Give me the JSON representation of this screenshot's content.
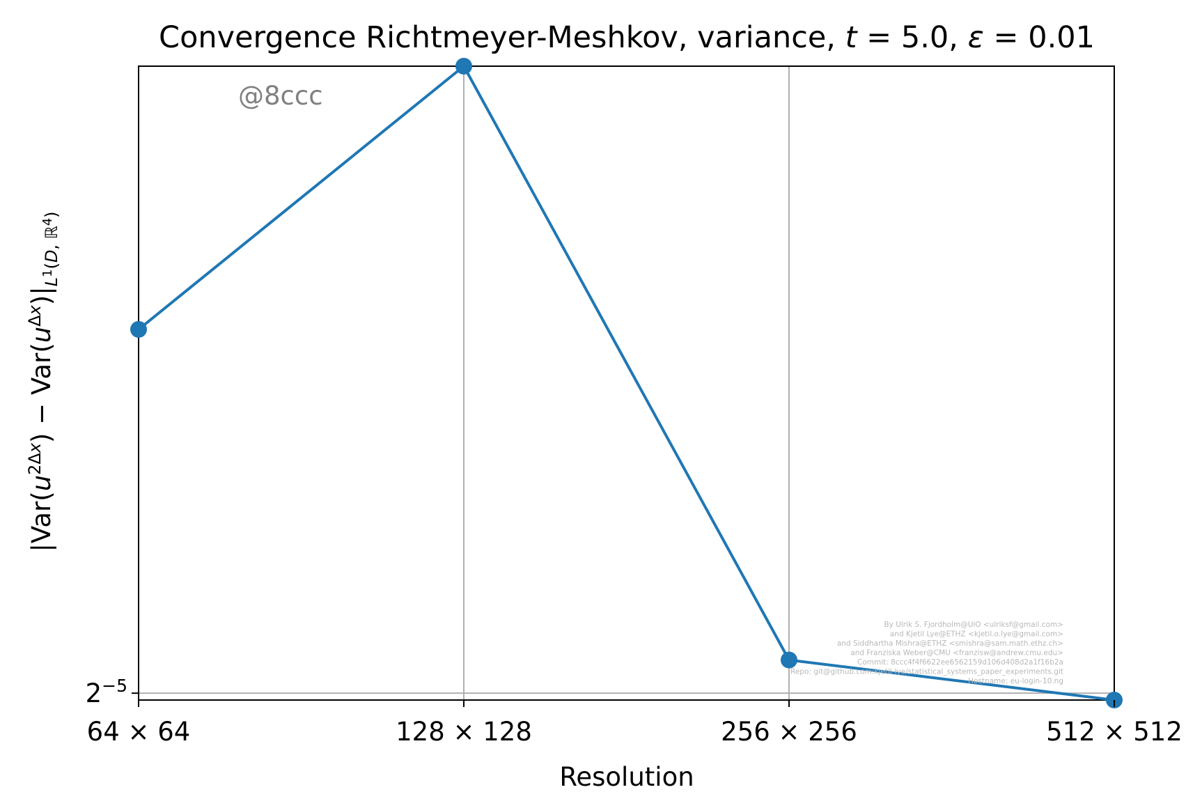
{
  "chart_data": {
    "type": "line",
    "title": "Convergence Richtmeyer-Meshkov, variance, t = 5.0, ε = 0.01",
    "xlabel": "Resolution",
    "ylabel": "||Var(u^{2Δx}) − Var(u^{Δx})||_{L^1(D, ℝ^4)}",
    "x": [
      64,
      128,
      256,
      512
    ],
    "categories": [
      "64 × 64",
      "128 × 128",
      "256 × 256",
      "512 × 512"
    ],
    "x_scale": "log2",
    "y_scale": "log2",
    "ylim": [
      0.03117,
      0.0395
    ],
    "y_ticks": [
      {
        "value": 0.03125,
        "label": "2^{−5}"
      }
    ],
    "series": [
      {
        "values": [
          0.0358,
          0.0395,
          0.03164,
          0.03117
        ],
        "color": "#1f77b4",
        "marker": "circle"
      }
    ],
    "grid": true,
    "watermark": "@8ccc",
    "credits": [
      "By Ulrik S. Fjordholm@UiO <ulriksf@gmail.com>",
      "and Kjetil Lye@ETHZ <kjetil.o.lye@gmail.com>",
      "and Siddhartha Mishra@ETHZ <smishra@sam.math.ethz.ch>",
      "and Franziska Weber@CMU <franzisw@andrew.cmu.edu>",
      "Commit: 8ccc4f4f6622ee6562159d106d408d2a1f16b2a",
      "Repo: git@github.com:kjetil-lye/statistical_systems_paper_experiments.git",
      "Hostname: eu-login-10.ng"
    ]
  }
}
